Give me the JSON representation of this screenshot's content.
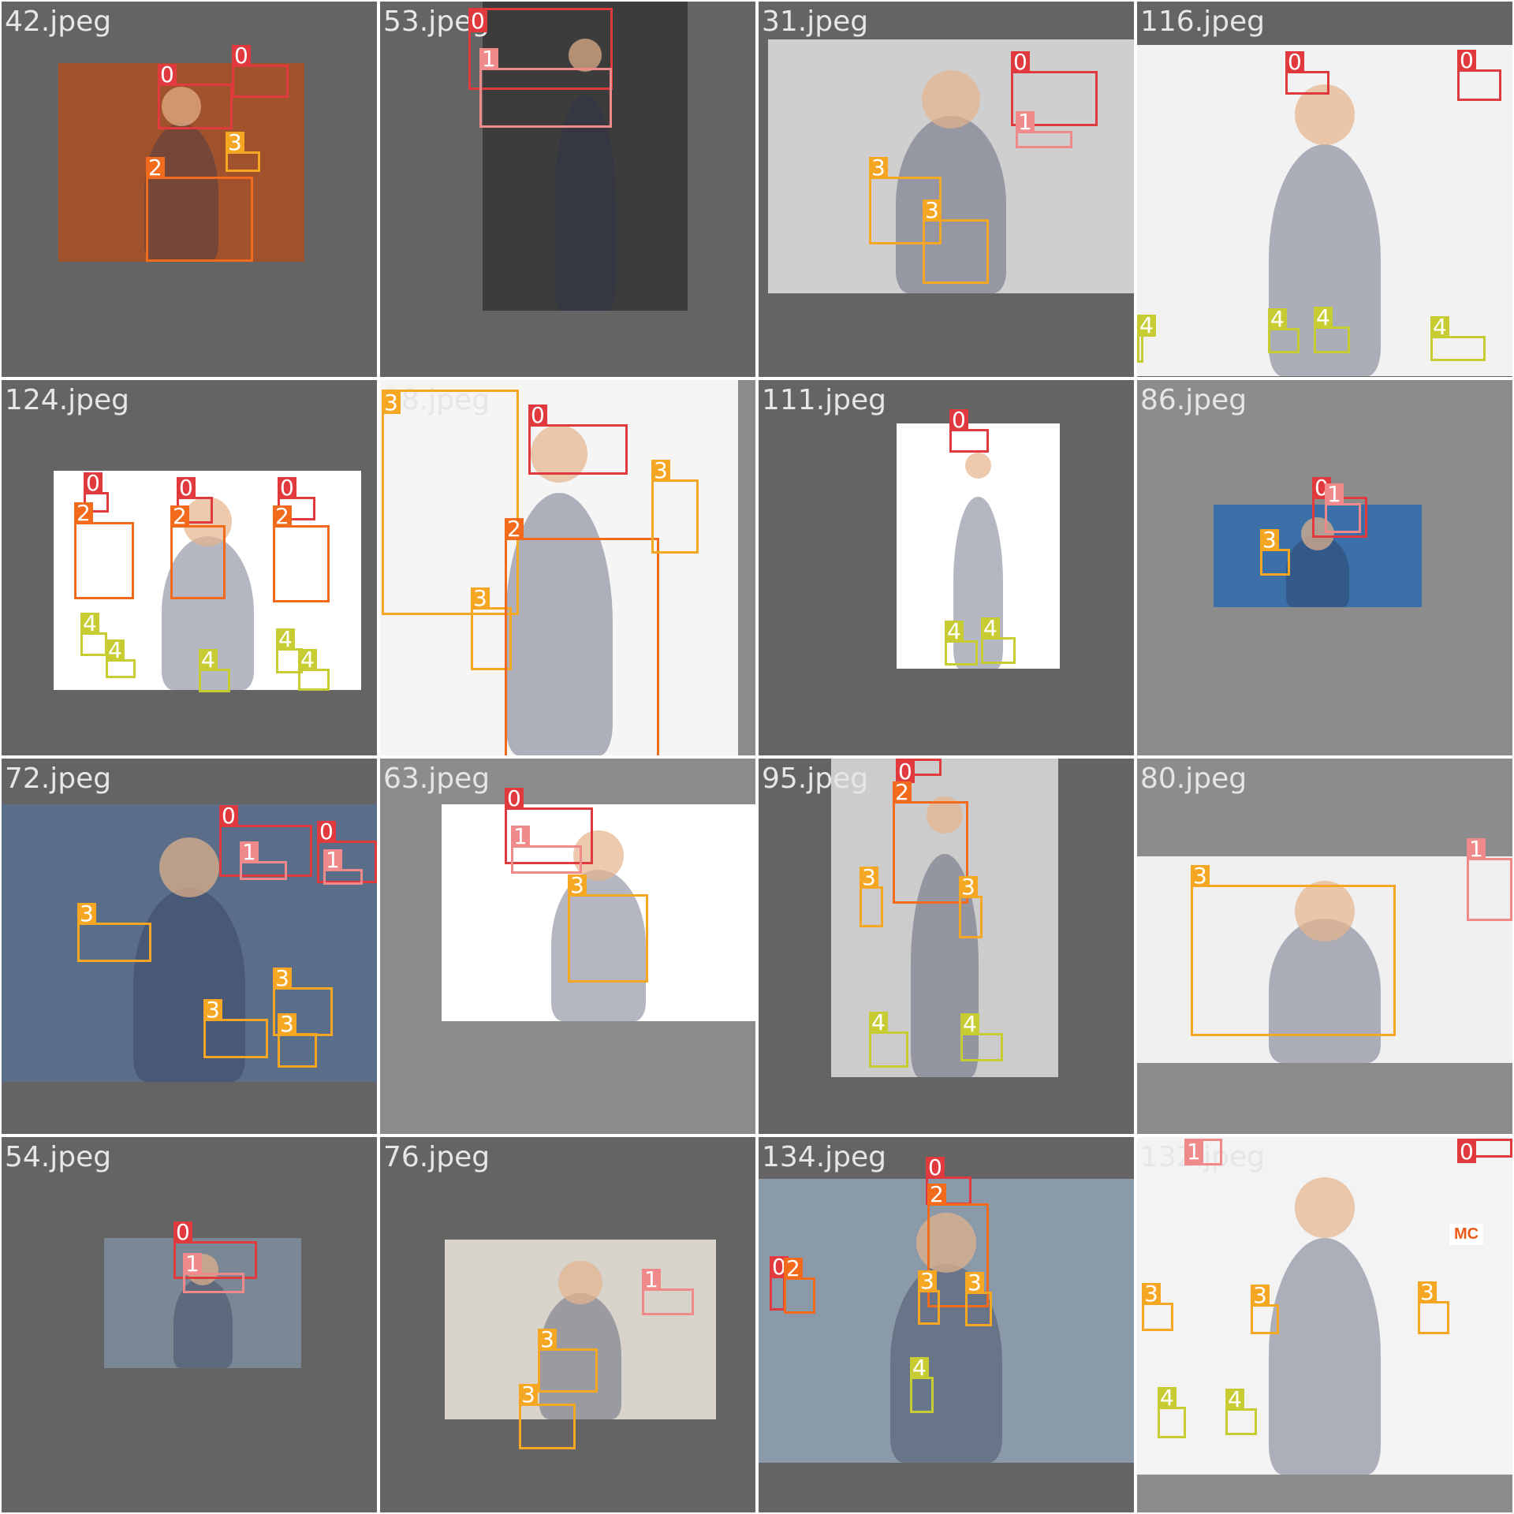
{
  "mosaic": {
    "background": "#ffffff",
    "class_colors": {
      "0": "#e0393e",
      "1": "#f08a8a",
      "2": "#f26b1d",
      "3": "#f5a623",
      "4": "#c8cc33"
    },
    "tiles": [
      {
        "file": "42.jpeg",
        "bg": "#646464",
        "photo": "#a0522d",
        "scene": "worker-yellow-helmet-wood",
        "boxes": [
          {
            "cls": "0"
          },
          {
            "cls": "0"
          },
          {
            "cls": "3"
          },
          {
            "cls": "2"
          }
        ]
      },
      {
        "file": "53.jpeg",
        "bg": "#646464",
        "photo": "#3c3c3c",
        "scene": "man-helmet-glasses-dark",
        "boxes": [
          {
            "cls": "0"
          },
          {
            "cls": "1"
          }
        ]
      },
      {
        "file": "31.jpeg",
        "bg": "#646464",
        "photo": "#cfcfcf",
        "scene": "worker-gloves-respirator",
        "boxes": [
          {
            "cls": "0"
          },
          {
            "cls": "1"
          },
          {
            "cls": "3"
          },
          {
            "cls": "3"
          }
        ]
      },
      {
        "file": "116.jpeg",
        "bg": "#646464",
        "photo": "#f2f2f2",
        "scene": "workers-overalls",
        "boxes": [
          {
            "cls": "0"
          },
          {
            "cls": "0"
          },
          {
            "cls": "4"
          },
          {
            "cls": "4"
          },
          {
            "cls": "4"
          },
          {
            "cls": "4"
          }
        ]
      },
      {
        "file": "124.jpeg",
        "bg": "#646464",
        "photo": "#ffffff",
        "scene": "three-workers-vests",
        "boxes": [
          {
            "cls": "0"
          },
          {
            "cls": "0"
          },
          {
            "cls": "0"
          },
          {
            "cls": "2"
          },
          {
            "cls": "2"
          },
          {
            "cls": "2"
          },
          {
            "cls": "4"
          },
          {
            "cls": "4"
          },
          {
            "cls": "4"
          },
          {
            "cls": "4"
          },
          {
            "cls": "4"
          }
        ]
      },
      {
        "file": "38.jpeg",
        "bg": "#8c8c8c",
        "photo": "#f5f5f5",
        "scene": "worker-orange-vest-gloves",
        "boxes": [
          {
            "cls": "3"
          },
          {
            "cls": "0"
          },
          {
            "cls": "3"
          },
          {
            "cls": "2"
          },
          {
            "cls": "3"
          }
        ]
      },
      {
        "file": "111.jpeg",
        "bg": "#646464",
        "photo": "#ffffff",
        "scene": "worker-standing-toolbelt",
        "boxes": [
          {
            "cls": "0"
          },
          {
            "cls": "4"
          },
          {
            "cls": "4"
          }
        ]
      },
      {
        "file": "86.jpeg",
        "bg": "#8c8c8c",
        "photo": "#3a6fa8",
        "scene": "welder-sparks",
        "boxes": [
          {
            "cls": "0"
          },
          {
            "cls": "1"
          },
          {
            "cls": "3"
          }
        ]
      },
      {
        "file": "72.jpeg",
        "bg": "#646464",
        "photo": "#5a6e8a",
        "scene": "workers-industrial",
        "boxes": [
          {
            "cls": "0"
          },
          {
            "cls": "0"
          },
          {
            "cls": "1"
          },
          {
            "cls": "1"
          },
          {
            "cls": "3"
          },
          {
            "cls": "3"
          },
          {
            "cls": "3"
          },
          {
            "cls": "3"
          }
        ]
      },
      {
        "file": "63.jpeg",
        "bg": "#8c8c8c",
        "photo": "#ffffff",
        "scene": "worker-thumbs-up",
        "boxes": [
          {
            "cls": "0"
          },
          {
            "cls": "1"
          },
          {
            "cls": "3"
          }
        ]
      },
      {
        "file": "95.jpeg",
        "bg": "#646464",
        "photo": "#cccccc",
        "scene": "worker-vest-standing",
        "boxes": [
          {
            "cls": "0"
          },
          {
            "cls": "2"
          },
          {
            "cls": "3"
          },
          {
            "cls": "3"
          },
          {
            "cls": "4"
          },
          {
            "cls": "4"
          }
        ]
      },
      {
        "file": "80.jpeg",
        "bg": "#8c8c8c",
        "photo": "#f0f0f0",
        "scene": "glove-drill",
        "boxes": [
          {
            "cls": "1"
          },
          {
            "cls": "3"
          }
        ]
      },
      {
        "file": "54.jpeg",
        "bg": "#646464",
        "photo": "#7a8794",
        "scene": "smiling-worker-helmet",
        "boxes": [
          {
            "cls": "0"
          },
          {
            "cls": "1"
          }
        ]
      },
      {
        "file": "76.jpeg",
        "bg": "#646464",
        "photo": "#d8d4cc",
        "scene": "worker-insulation",
        "boxes": [
          {
            "cls": "1"
          },
          {
            "cls": "3"
          },
          {
            "cls": "3"
          }
        ]
      },
      {
        "file": "134.jpeg",
        "bg": "#646464",
        "photo": "#8a9aa8",
        "scene": "road-workers",
        "boxes": [
          {
            "cls": "0"
          },
          {
            "cls": "2"
          },
          {
            "cls": "3"
          },
          {
            "cls": "3"
          },
          {
            "cls": "0"
          },
          {
            "cls": "2"
          },
          {
            "cls": "4"
          }
        ]
      },
      {
        "file": "132.jpeg",
        "bg": "#8c8c8c",
        "photo": "#f3f3f3",
        "scene": "workers-orange-hiviz",
        "boxes": [
          {
            "cls": "1"
          },
          {
            "cls": "0"
          },
          {
            "cls": "3"
          },
          {
            "cls": "3"
          },
          {
            "cls": "3"
          },
          {
            "cls": "4"
          },
          {
            "cls": "4"
          }
        ],
        "logo_text": "MC"
      }
    ]
  }
}
